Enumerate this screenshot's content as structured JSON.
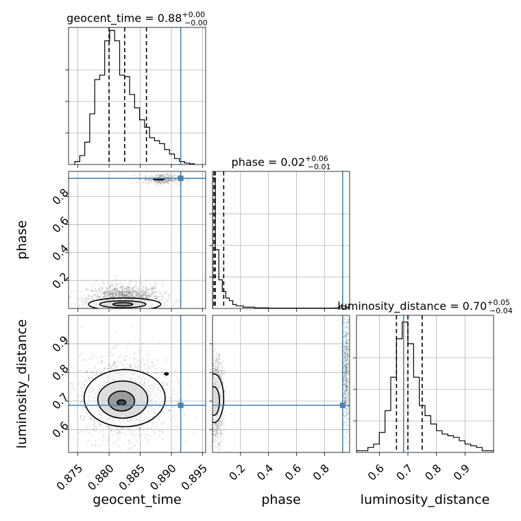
{
  "chart_data": {
    "type": "scatter",
    "figure_kind": "corner-plot",
    "parameters": [
      "geocent_time",
      "phase",
      "luminosity_distance"
    ],
    "truth": {
      "geocent_time": 0.8915,
      "phase": 0.93,
      "luminosity_distance": 0.685
    },
    "truth_color": "#4682b4",
    "grid": true,
    "diagonal": [
      {
        "param": "geocent_time",
        "title_prefix": "geocent_time = 0.88",
        "title_sup": "+0.00",
        "title_sub": "−0.00",
        "xlim": [
          0.8735,
          0.8955
        ],
        "quantiles": [
          0.88,
          0.8825,
          0.886
        ],
        "bin_edges": [
          0.8745,
          0.8753,
          0.8761,
          0.8769,
          0.8777,
          0.8785,
          0.8793,
          0.8801,
          0.8809,
          0.8817,
          0.8825,
          0.8833,
          0.8841,
          0.8849,
          0.8857,
          0.8865,
          0.8873,
          0.8881,
          0.8889,
          0.8897,
          0.8905,
          0.8913,
          0.8921,
          0.8929,
          0.8937
        ],
        "counts": [
          2,
          6,
          15,
          34,
          57,
          60,
          83,
          90,
          83,
          60,
          59,
          47,
          38,
          30,
          25,
          18,
          16,
          14,
          10,
          7,
          4,
          2,
          1,
          0.5
        ],
        "ylim": [
          0,
          92
        ]
      },
      {
        "param": "phase",
        "title_prefix": "phase = 0.02",
        "title_sup": "+0.06",
        "title_sub": "−0.01",
        "xlim": [
          0.0,
          0.98
        ],
        "quantiles": [
          0.01,
          0.02,
          0.08
        ],
        "bin_edges": [
          0.0,
          0.02,
          0.045,
          0.07,
          0.095,
          0.12,
          0.145,
          0.17,
          0.22,
          0.3,
          0.4,
          0.5,
          0.6,
          0.7,
          0.8,
          0.88,
          0.91,
          0.95,
          0.98
        ],
        "counts": [
          100,
          45,
          22,
          13,
          8,
          6,
          3,
          2,
          1,
          0.5,
          0.3,
          0.3,
          0.3,
          0.3,
          0.3,
          0.5,
          2,
          1
        ],
        "ylim": [
          0,
          105
        ]
      },
      {
        "param": "luminosity_distance",
        "title_prefix": "luminosity_distance = 0.70",
        "title_sup": "+0.05",
        "title_sub": "−0.04",
        "xlim": [
          0.52,
          1.0
        ],
        "quantiles": [
          0.66,
          0.7,
          0.75
        ],
        "bin_edges": [
          0.52,
          0.56,
          0.58,
          0.6,
          0.62,
          0.64,
          0.66,
          0.68,
          0.7,
          0.72,
          0.74,
          0.76,
          0.78,
          0.8,
          0.82,
          0.84,
          0.86,
          0.88,
          0.9,
          0.92,
          0.94,
          0.96,
          1.0
        ],
        "counts": [
          1,
          3,
          5,
          12,
          25,
          45,
          68,
          78,
          65,
          45,
          28,
          22,
          17,
          13,
          11,
          10,
          9,
          7,
          5,
          4,
          3,
          1
        ],
        "ylim": [
          0,
          82
        ]
      }
    ],
    "panels_2d": [
      {
        "x": "geocent_time",
        "y": "phase",
        "ylim": [
          0.0,
          0.98
        ],
        "clouds": [
          {
            "cx": 0.8825,
            "cy": 0.07,
            "sx": 0.003,
            "sy": 0.05,
            "n": 1400
          },
          {
            "cx": 0.8885,
            "cy": 0.925,
            "sx": 0.0015,
            "sy": 0.02,
            "n": 300
          }
        ],
        "contours": [
          {
            "cx": 0.8825,
            "cy": 0.03,
            "rx": 0.0058,
            "ry": 0.045
          },
          {
            "cx": 0.8822,
            "cy": 0.03,
            "rx": 0.0037,
            "ry": 0.025
          },
          {
            "cx": 0.8822,
            "cy": 0.03,
            "rx": 0.0016,
            "ry": 0.012
          },
          {
            "cx": 0.888,
            "cy": 0.925,
            "rx": 0.0009,
            "ry": 0.006
          }
        ]
      },
      {
        "x": "geocent_time",
        "y": "luminosity_distance",
        "ylim": [
          0.52,
          1.0
        ],
        "clouds": [
          {
            "cx": 0.8825,
            "cy": 0.71,
            "sx": 0.0035,
            "sy": 0.07,
            "n": 1800
          }
        ],
        "contours": [
          {
            "cx": 0.8825,
            "cy": 0.71,
            "rx": 0.0065,
            "ry": 0.1
          },
          {
            "cx": 0.8822,
            "cy": 0.705,
            "rx": 0.004,
            "ry": 0.065
          },
          {
            "cx": 0.882,
            "cy": 0.7,
            "rx": 0.0021,
            "ry": 0.035
          },
          {
            "cx": 0.882,
            "cy": 0.695,
            "rx": 0.0007,
            "ry": 0.009
          },
          {
            "cx": 0.8892,
            "cy": 0.795,
            "rx": 0.0003,
            "ry": 0.004
          }
        ]
      },
      {
        "x": "phase",
        "y": "luminosity_distance",
        "clouds": [
          {
            "cx": 0.03,
            "cy": 0.71,
            "sx": 0.025,
            "sy": 0.07,
            "n": 900
          },
          {
            "cx": 0.955,
            "cy": 0.8,
            "sx": 0.012,
            "sy": 0.1,
            "n": 500
          }
        ],
        "contours": [
          {
            "cx": 0.01,
            "cy": 0.71,
            "rx": 0.07,
            "ry": 0.085
          },
          {
            "cx": 0.01,
            "cy": 0.7,
            "rx": 0.04,
            "ry": 0.05
          }
        ]
      }
    ],
    "axes": {
      "geocent_time": {
        "ticks": [
          0.875,
          0.88,
          0.885,
          0.89,
          0.895
        ],
        "tick_labels": [
          "0.875",
          "0.880",
          "0.885",
          "0.890",
          "0.895"
        ],
        "label": "geocent_time"
      },
      "phase": {
        "ticks": [
          0.2,
          0.4,
          0.6,
          0.8
        ],
        "tick_labels": [
          "0.2",
          "0.4",
          "0.6",
          "0.8"
        ],
        "label": "phase"
      },
      "luminosity_distance": {
        "ticks": [
          0.6,
          0.7,
          0.8,
          0.9
        ],
        "tick_labels": [
          "0.6",
          "0.7",
          "0.8",
          "0.9"
        ],
        "label": "luminosity_distance"
      }
    }
  }
}
